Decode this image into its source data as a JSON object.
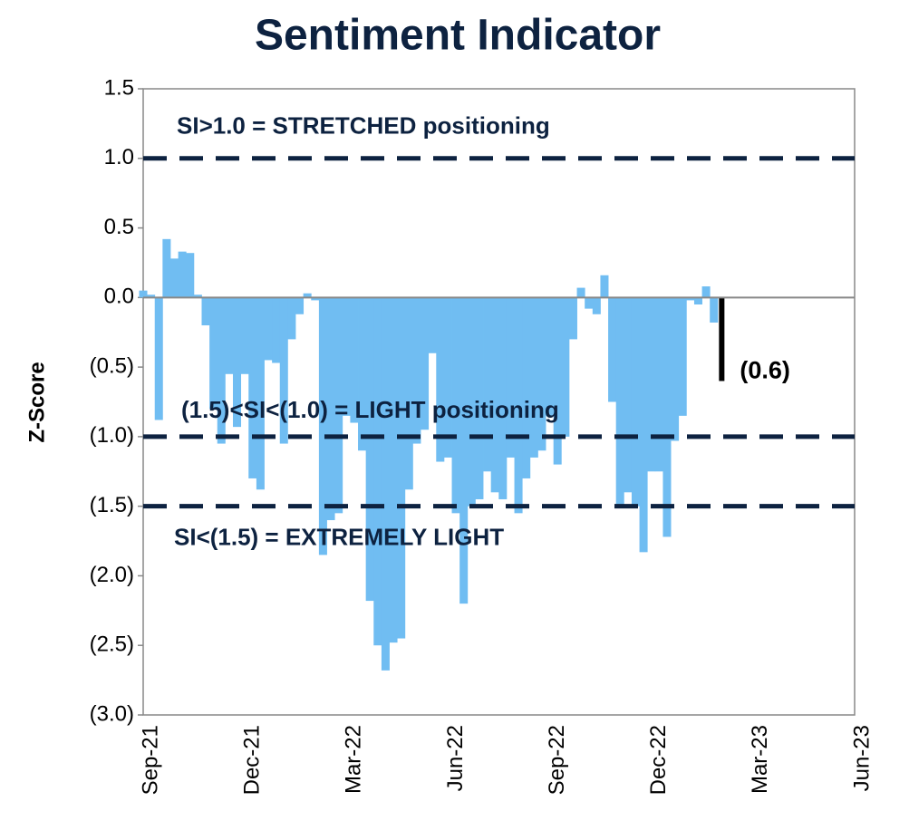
{
  "chart_data": {
    "type": "bar",
    "title": "Sentiment Indicator",
    "y_label": "Z-Score",
    "categories": [
      "Sep-21",
      null,
      null,
      null,
      null,
      null,
      null,
      null,
      null,
      null,
      null,
      null,
      null,
      "Dec-21",
      null,
      null,
      null,
      null,
      null,
      null,
      null,
      null,
      null,
      null,
      null,
      null,
      "Mar-22",
      null,
      null,
      null,
      null,
      null,
      null,
      null,
      null,
      null,
      null,
      null,
      null,
      "Jun-22",
      null,
      null,
      null,
      null,
      null,
      null,
      null,
      null,
      null,
      null,
      null,
      null,
      "Sep-22",
      null,
      null,
      null,
      null,
      null,
      null,
      null,
      null,
      null,
      null,
      null,
      null,
      "Dec-22",
      null,
      null,
      null,
      null,
      null,
      null,
      null,
      null,
      null,
      null,
      null,
      null,
      "Mar-23",
      null,
      null,
      null,
      null,
      null,
      null,
      null,
      null,
      null,
      null,
      null,
      null,
      "Jun-23"
    ],
    "values": [
      0.05,
      0.02,
      -0.88,
      0.42,
      0.28,
      0.33,
      0.32,
      0.02,
      -0.2,
      -0.8,
      -1.05,
      -0.55,
      -0.93,
      -0.55,
      -1.3,
      -1.38,
      -0.45,
      -0.47,
      -1.05,
      -0.3,
      -0.12,
      0.03,
      -0.02,
      -1.85,
      -1.6,
      -1.55,
      -0.85,
      -0.9,
      -1.1,
      -2.18,
      -2.5,
      -2.68,
      -2.48,
      -2.45,
      -1.38,
      -1.05,
      -0.95,
      -0.4,
      -1.18,
      -1.15,
      -1.55,
      -2.2,
      -1.5,
      -1.45,
      -1.25,
      -1.4,
      -1.45,
      -1.15,
      -1.55,
      -1.3,
      -1.15,
      -1.1,
      -0.85,
      -1.2,
      -1.0,
      -0.3,
      0.07,
      -0.08,
      -0.12,
      0.16,
      -0.75,
      -1.5,
      -1.4,
      -1.5,
      -1.83,
      -1.25,
      -1.25,
      -1.72,
      -1.03,
      -0.85,
      -0.02,
      -0.05,
      0.08,
      -0.18,
      -0.6,
      null,
      null,
      null,
      null,
      null,
      null,
      null,
      null,
      null,
      null,
      null,
      null,
      null,
      null,
      null,
      null,
      null
    ],
    "value_labels": [
      null,
      null,
      null,
      null,
      null,
      null,
      null,
      null,
      null,
      null,
      null,
      null,
      null,
      null,
      null,
      null,
      null,
      null,
      null,
      null,
      null,
      null,
      null,
      null,
      null,
      null,
      null,
      null,
      null,
      null,
      null,
      null,
      null,
      null,
      null,
      null,
      null,
      null,
      null,
      null,
      null,
      null,
      null,
      null,
      null,
      null,
      null,
      null,
      null,
      null,
      null,
      null,
      null,
      null,
      null,
      null,
      null,
      null,
      null,
      null,
      null,
      null,
      null,
      null,
      null,
      null,
      null,
      null,
      null,
      null,
      null,
      null,
      null,
      null,
      "(0.6)",
      null,
      null,
      null,
      null,
      null,
      null,
      null,
      null,
      null,
      null,
      null,
      null,
      null,
      null,
      null,
      null,
      null
    ],
    "color": "#70bdf2",
    "highlight_color": "#000000",
    "ylim": [
      -3.0,
      1.5
    ],
    "yticks": [
      {
        "value": -3.0,
        "label": "(3.0)"
      },
      {
        "value": -2.5,
        "label": "(2.5)"
      },
      {
        "value": -2.0,
        "label": "(2.0)"
      },
      {
        "value": -1.5,
        "label": "(1.5)"
      },
      {
        "value": -1.0,
        "label": "(1.0)"
      },
      {
        "value": -0.5,
        "label": "(0.5)"
      },
      {
        "value": 0.0,
        "label": "0.0"
      },
      {
        "value": 0.5,
        "label": "0.5"
      },
      {
        "value": 1.0,
        "label": "1.0"
      },
      {
        "value": 1.5,
        "label": "1.5"
      }
    ],
    "reference_lines": [
      {
        "value": 1.0,
        "label": "SI>1.0 = STRETCHED positioning"
      },
      {
        "value": -1.0,
        "label": "(1.5)<SI<(1.0) = LIGHT positioning"
      },
      {
        "value": -1.5,
        "label": "SI<(1.5) = EXTREMELY LIGHT"
      }
    ],
    "reference_color": "#0d2240",
    "grid": false
  }
}
